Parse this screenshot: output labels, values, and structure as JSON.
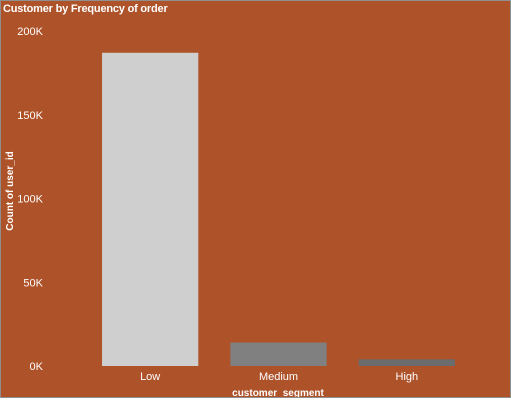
{
  "chart_data": {
    "type": "bar",
    "title": "Customer by Frequency of order",
    "xlabel": "customer_segment",
    "ylabel": "Count of user_id",
    "categories": [
      "Low",
      "Medium",
      "High"
    ],
    "values": [
      187000,
      14000,
      4000
    ],
    "bar_colors": [
      "#cfcfcf",
      "#808080",
      "#6c6c6c"
    ],
    "ylim": [
      0,
      200000
    ],
    "yticks": [
      0,
      50000,
      100000,
      150000,
      200000
    ],
    "ytick_labels": [
      "0K",
      "50K",
      "100K",
      "150K",
      "200K"
    ],
    "grid": false,
    "legend": "none"
  },
  "colors": {
    "background": "#ae5229",
    "text": "#ffffff"
  }
}
